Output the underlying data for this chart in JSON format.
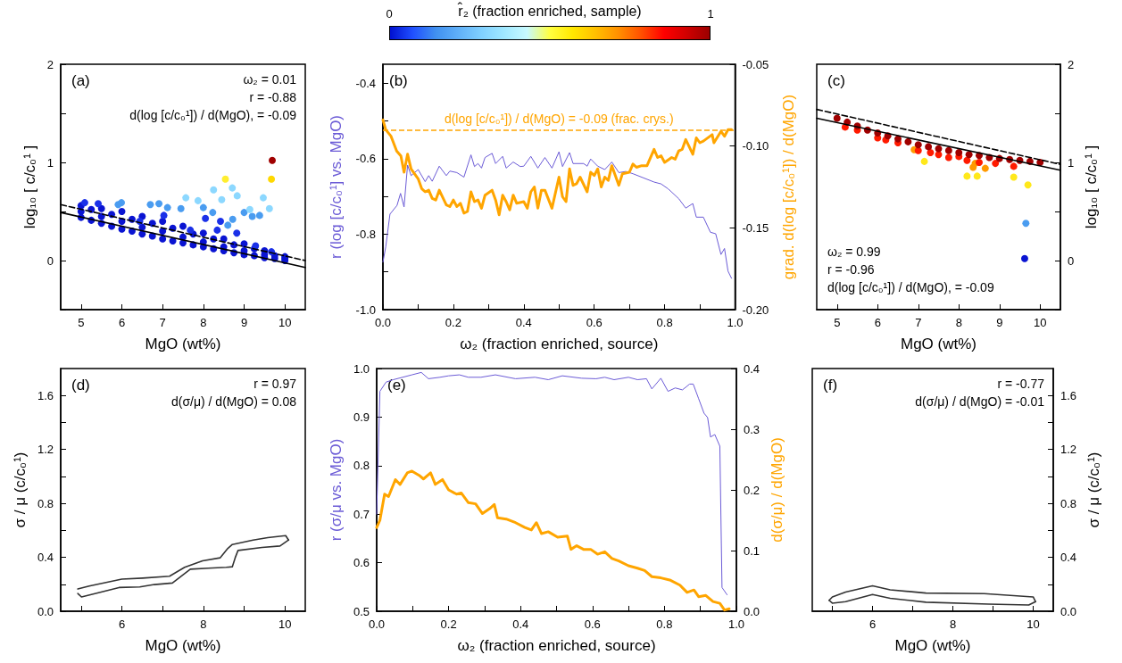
{
  "chart_data": [
    {
      "type": "scatter",
      "clabel": "r̂₂ (fraction enriched, sample)",
      "clim": [
        0,
        1
      ],
      "cticks": [
        0,
        1
      ],
      "marker": "circle",
      "annotations": [
        "(a)",
        "ω₂ = 0.01",
        "r = -0.88",
        "d(log [c/c₀¹]) / d(MgO), = -0.09"
      ],
      "xlabel": "MgO (wt%)",
      "ylabel": "log₁₀ [ c/c₀¹ ]",
      "xlim": [
        4.5,
        10.5
      ],
      "xticks": [
        5,
        6,
        7,
        8,
        9,
        10
      ],
      "ylim": [
        -0.5,
        2
      ],
      "yticks": [
        {
          "value": -0.5,
          "label": null
        },
        0,
        {
          "value": 0.5,
          "label": null
        },
        1,
        {
          "value": 1.5,
          "label": null
        },
        2
      ],
      "series": [
        {
          "x": [
            5,
            5,
            5,
            5.25,
            5.25,
            5.5,
            5.5,
            5.5,
            5.75,
            5.75,
            6,
            6,
            6,
            6.25,
            6.25,
            6.5,
            6.5,
            6.5,
            6.75,
            6.75,
            7,
            7,
            7,
            7.25,
            7.25,
            7.5,
            7.5,
            7.5,
            7.75,
            7.75,
            8,
            8,
            8,
            8.25,
            8.25,
            8.5,
            8.5,
            8.5,
            8.75,
            8.75,
            9,
            9,
            9,
            9.25,
            9.25,
            9.5,
            9.5,
            9.5,
            9.75,
            9.75,
            10,
            10,
            10,
            9.28,
            8.82,
            8.42,
            8.05,
            8.34,
            7.68,
            7.03,
            6.44,
            5.42,
            5.09,
            9.67,
            6.7,
            6.91,
            7.12,
            7.45,
            8.0,
            8.23,
            9.0,
            9.2,
            9.38,
            8.6,
            8.72,
            5.99,
            5.91,
            8.25,
            8.71,
            8.83,
            8.45,
            9.47,
            7.57,
            7.87,
            9.62,
            9.14,
            8.54,
            9.67,
            9.69
          ],
          "values": [
            0.44,
            0.5,
            0.56,
            0.41,
            0.52,
            0.38,
            0.45,
            0.53,
            0.35,
            0.47,
            0.32,
            0.4,
            0.5,
            0.3,
            0.42,
            0.27,
            0.34,
            0.45,
            0.25,
            0.38,
            0.22,
            0.3,
            0.4,
            0.2,
            0.33,
            0.18,
            0.24,
            0.35,
            0.16,
            0.27,
            0.14,
            0.19,
            0.28,
            0.12,
            0.22,
            0.1,
            0.14,
            0.22,
            0.08,
            0.16,
            0.06,
            0.1,
            0.17,
            0.05,
            0.12,
            0.03,
            0.06,
            0.1,
            0.02,
            0.05,
            0,
            0.02,
            0.04,
            0.15,
            0.28,
            0.4,
            0.43,
            0.31,
            0.31,
            0.46,
            0.4,
            0.58,
            0.59,
            0.09,
            0.57,
            0.58,
            0.54,
            0.53,
            0.54,
            0.49,
            0.49,
            0.45,
            0.46,
            0.36,
            0.42,
            0.59,
            0.57,
            0.72,
            0.74,
            0.66,
            0.62,
            0.64,
            0.64,
            0.61,
            0.53,
            0.52,
            0.83,
            0.83,
            1.02
          ],
          "colors": [
            "#0a14d2",
            "#0a14d2",
            "#0a14d2",
            "#0a14d2",
            "#0a14d2",
            "#0a14d2",
            "#0a14d2",
            "#0a14d2",
            "#0a14d2",
            "#0a14d2",
            "#0a14d2",
            "#0a14d2",
            "#0a14d2",
            "#0a14d2",
            "#0a14d2",
            "#0a14d2",
            "#0a14d2",
            "#0a14d2",
            "#0a14d2",
            "#0a14d2",
            "#0a14d2",
            "#0a14d2",
            "#0a14d2",
            "#0a14d2",
            "#0a14d2",
            "#0a14d2",
            "#0a14d2",
            "#0a14d2",
            "#0a14d2",
            "#0a14d2",
            "#0a14d2",
            "#0a14d2",
            "#0a14d2",
            "#0a14d2",
            "#0a14d2",
            "#0a14d2",
            "#0a14d2",
            "#0a14d2",
            "#0a14d2",
            "#0a14d2",
            "#0a14d2",
            "#0a14d2",
            "#0a14d2",
            "#0a14d2",
            "#0a14d2",
            "#0a14d2",
            "#0a14d2",
            "#0a14d2",
            "#0a14d2",
            "#0a14d2",
            "#0a14d2",
            "#0a14d2",
            "#0a14d2",
            "#1a30e8",
            "#1a30e8",
            "#1a30e8",
            "#1a30e8",
            "#1a30e8",
            "#1a30e8",
            "#1a30e8",
            "#1a30e8",
            "#1a30e8",
            "#1a30e8",
            "#1a30e8",
            "#4a9cf0",
            "#4a9cf0",
            "#4a9cf0",
            "#4a9cf0",
            "#4a9cf0",
            "#4a9cf0",
            "#4a9cf0",
            "#4a9cf0",
            "#4a9cf0",
            "#4a9cf0",
            "#4a9cf0",
            "#4a9cf0",
            "#4a9cf0",
            "#8cd8ff",
            "#8cd8ff",
            "#8cd8ff",
            "#8cd8ff",
            "#8cd8ff",
            "#8cd8ff",
            "#8cd8ff",
            "#8cd8ff",
            "#8cd8ff",
            "#ffee30",
            "#ffd800",
            "#a00000"
          ]
        },
        {
          "type": "line",
          "x": [
            4.5,
            10.5
          ],
          "values": [
            0.49,
            -0.07
          ],
          "color": "#000000",
          "line_style": "solid",
          "marker": "none"
        },
        {
          "type": "line",
          "x": [
            4.5,
            10.5
          ],
          "values": [
            0.57,
            0.0
          ],
          "color": "#000000",
          "line_style": "dashed",
          "marker": "none"
        }
      ]
    },
    {
      "type": "line",
      "annotations": [
        "(b)"
      ],
      "xlabel": "ω₂ (fraction enriched, source)",
      "ylabel": "r (log [c/c₀¹] vs. MgO)",
      "y2label": "grad. d(log [c/c₀¹]) / d(MgO)",
      "xlim": [
        0,
        1
      ],
      "xticks": [
        {
          "value": 0,
          "label": "0.0"
        },
        {
          "value": 0.1,
          "label": null
        },
        0.2,
        {
          "value": 0.3,
          "label": null
        },
        0.4,
        {
          "value": 0.5,
          "label": null
        },
        0.6,
        {
          "value": 0.7,
          "label": null
        },
        0.8,
        {
          "value": 0.9,
          "label": null
        },
        {
          "value": 1,
          "label": "1.0"
        }
      ],
      "ylim": [
        -1,
        -0.35
      ],
      "yticks": [
        {
          "value": -1,
          "label": "-1.0"
        },
        {
          "value": -0.9,
          "label": null
        },
        -0.8,
        {
          "value": -0.7,
          "label": null
        },
        -0.6,
        {
          "value": -0.5,
          "label": null
        },
        -0.4
      ],
      "y2lim": [
        -0.2,
        -0.05
      ],
      "y2ticks": [
        {
          "value": -0.2,
          "label": "-0.20"
        },
        -0.15,
        {
          "value": -0.1,
          "label": "-0.10"
        },
        -0.05
      ],
      "ref_lines": [
        {
          "axis": "y2",
          "value": -0.09,
          "label": "d(log [c/c₀¹]) / d(MgO) = -0.09 (frac. crys.)",
          "color": "#ffa500",
          "line_style": "dashed"
        }
      ],
      "series": [
        {
          "color": "#6b5bd6",
          "x": [
            0,
            0.008,
            0.02,
            0.04,
            0.05,
            0.06,
            0.07,
            0.08,
            0.1,
            0.12,
            0.13,
            0.14,
            0.16,
            0.18,
            0.19,
            0.21,
            0.23,
            0.25,
            0.26,
            0.27,
            0.28,
            0.29,
            0.31,
            0.32,
            0.34,
            0.35,
            0.37,
            0.39,
            0.4,
            0.42,
            0.44,
            0.46,
            0.48,
            0.5,
            0.51,
            0.53,
            0.54,
            0.57,
            0.58,
            0.59,
            0.61,
            0.63,
            0.65,
            0.67,
            0.69,
            0.71,
            0.74,
            0.77,
            0.79,
            0.81,
            0.84,
            0.86,
            0.88,
            0.89,
            0.91,
            0.93,
            0.945,
            0.96,
            0.97,
            0.98,
            0.99
          ],
          "values": [
            -0.874,
            -0.834,
            -0.747,
            -0.724,
            -0.692,
            -0.728,
            -0.617,
            -0.645,
            -0.629,
            -0.661,
            -0.645,
            -0.66,
            -0.62,
            -0.645,
            -0.633,
            -0.637,
            -0.649,
            -0.59,
            -0.621,
            -0.613,
            -0.625,
            -0.597,
            -0.586,
            -0.613,
            -0.594,
            -0.625,
            -0.609,
            -0.621,
            -0.62,
            -0.594,
            -0.625,
            -0.597,
            -0.625,
            -0.582,
            -0.621,
            -0.584,
            -0.613,
            -0.613,
            -0.62,
            -0.601,
            -0.62,
            -0.629,
            -0.609,
            -0.637,
            -0.634,
            -0.64,
            -0.651,
            -0.662,
            -0.667,
            -0.68,
            -0.706,
            -0.731,
            -0.719,
            -0.755,
            -0.755,
            -0.795,
            -0.799,
            -0.854,
            -0.838,
            -0.898,
            -0.917
          ]
        },
        {
          "color": "#ffa500",
          "axis": "y2",
          "x": [
            0,
            0.008,
            0.023,
            0.039,
            0.051,
            0.06,
            0.07,
            0.08,
            0.1,
            0.11,
            0.12,
            0.13,
            0.14,
            0.15,
            0.16,
            0.18,
            0.19,
            0.2,
            0.21,
            0.22,
            0.23,
            0.24,
            0.25,
            0.26,
            0.27,
            0.28,
            0.29,
            0.31,
            0.32,
            0.33,
            0.34,
            0.35,
            0.36,
            0.37,
            0.38,
            0.4,
            0.41,
            0.42,
            0.43,
            0.44,
            0.45,
            0.46,
            0.48,
            0.5,
            0.51,
            0.52,
            0.53,
            0.54,
            0.55,
            0.56,
            0.58,
            0.59,
            0.6,
            0.61,
            0.62,
            0.63,
            0.64,
            0.65,
            0.67,
            0.68,
            0.7,
            0.71,
            0.72,
            0.735,
            0.75,
            0.77,
            0.78,
            0.79,
            0.8,
            0.82,
            0.83,
            0.84,
            0.85,
            0.86,
            0.88,
            0.89,
            0.9,
            0.91,
            0.935,
            0.94,
            0.96,
            0.97,
            0.98,
            0.99
          ],
          "values": [
            -0.084,
            -0.09,
            -0.094,
            -0.103,
            -0.106,
            -0.116,
            -0.105,
            -0.114,
            -0.12,
            -0.126,
            -0.128,
            -0.127,
            -0.132,
            -0.133,
            -0.127,
            -0.136,
            -0.137,
            -0.133,
            -0.137,
            -0.135,
            -0.141,
            -0.14,
            -0.128,
            -0.134,
            -0.133,
            -0.138,
            -0.13,
            -0.127,
            -0.133,
            -0.142,
            -0.13,
            -0.134,
            -0.139,
            -0.13,
            -0.135,
            -0.134,
            -0.138,
            -0.128,
            -0.125,
            -0.138,
            -0.127,
            -0.127,
            -0.138,
            -0.119,
            -0.131,
            -0.134,
            -0.114,
            -0.124,
            -0.123,
            -0.119,
            -0.128,
            -0.116,
            -0.118,
            -0.114,
            -0.125,
            -0.119,
            -0.121,
            -0.112,
            -0.124,
            -0.117,
            -0.116,
            -0.111,
            -0.113,
            -0.112,
            -0.112,
            -0.102,
            -0.107,
            -0.106,
            -0.11,
            -0.107,
            -0.108,
            -0.103,
            -0.102,
            -0.096,
            -0.105,
            -0.095,
            -0.098,
            -0.097,
            -0.093,
            -0.098,
            -0.091,
            -0.094,
            -0.09,
            -0.09
          ]
        }
      ]
    },
    {
      "type": "scatter",
      "marker": "circle",
      "annotations": [
        "(c)",
        "ω₂ = 0.99",
        "r = -0.96",
        "d(log [c/c₀¹]) / d(MgO), = -0.09"
      ],
      "xlabel": "MgO (wt%)",
      "y2label": "log₁₀ [ c/c₀¹ ]",
      "xlim": [
        4.5,
        10.5
      ],
      "xticks": [
        5,
        6,
        7,
        8,
        9,
        10
      ],
      "y2lim": [
        -0.5,
        2
      ],
      "y2ticks": [
        {
          "value": -0.5,
          "label": null
        },
        0,
        {
          "value": 0.5,
          "label": null
        },
        1,
        {
          "value": 1.5,
          "label": null
        },
        2
      ],
      "series": [
        {
          "axis": "y2",
          "x": [
            9.62,
            9.65,
            7.15,
            8.2,
            8.45,
            9.35,
            9.7,
            6.9,
            8.35,
            8.4,
            8.65,
            5.2,
            5.5,
            6.0,
            6.2,
            6.5,
            7.0,
            7.3,
            7.5,
            7.75,
            8.0,
            8.2,
            8.5,
            8.9,
            9.35,
            5,
            5.25,
            5.5,
            5.75,
            6,
            6.25,
            6.5,
            6.75,
            7,
            7.25,
            7.5,
            7.75,
            8,
            8.25,
            8.5,
            8.75,
            9,
            9.25,
            9.5,
            9.75,
            10
          ],
          "values": [
            0.02,
            0.38,
            1.01,
            0.86,
            0.86,
            0.85,
            0.77,
            1.13,
            0.95,
            0.99,
            0.94,
            1.36,
            1.33,
            1.25,
            1.23,
            1.2,
            1.12,
            1.1,
            1.08,
            1.05,
            1.06,
            1.02,
            1.0,
            0.99,
            0.96,
            1.45,
            1.41,
            1.37,
            1.33,
            1.3,
            1.27,
            1.24,
            1.21,
            1.18,
            1.16,
            1.14,
            1.12,
            1.1,
            1.08,
            1.07,
            1.05,
            1.04,
            1.03,
            1.02,
            1.01,
            1.0
          ],
          "colors": [
            "#0a14d2",
            "#4a9cf0",
            "#ffe81a",
            "#ffe81a",
            "#ffe81a",
            "#ffe81a",
            "#ffe81a",
            "#ff9a00",
            "#ff9a00",
            "#ff9a00",
            "#ff9a00",
            "#ff1a00",
            "#ff1a00",
            "#ff1a00",
            "#ff1a00",
            "#ff1a00",
            "#ff1a00",
            "#ff1a00",
            "#ff1a00",
            "#ff1a00",
            "#ff1a00",
            "#ff1a00",
            "#ff1a00",
            "#ff1a00",
            "#ff1a00",
            "#a00000",
            "#a00000",
            "#a00000",
            "#a00000",
            "#a00000",
            "#a00000",
            "#a00000",
            "#a00000",
            "#a00000",
            "#a00000",
            "#a00000",
            "#a00000",
            "#a00000",
            "#a00000",
            "#a00000",
            "#a00000",
            "#a00000",
            "#a00000",
            "#a00000",
            "#a00000",
            "#a00000"
          ]
        },
        {
          "type": "line",
          "axis": "y2",
          "x": [
            4.5,
            10.5
          ],
          "values": [
            1.45,
            0.92
          ],
          "color": "#000000",
          "line_style": "solid",
          "marker": "none"
        },
        {
          "type": "line",
          "axis": "y2",
          "x": [
            4.5,
            10.5
          ],
          "values": [
            1.54,
            0.98
          ],
          "color": "#000000",
          "line_style": "dashed",
          "marker": "none"
        }
      ]
    },
    {
      "type": "line",
      "annotations": [
        "(d)",
        "r = 0.97",
        "d(σ/μ) / d(MgO) = 0.08"
      ],
      "xlabel": "MgO (wt%)",
      "ylabel": "σ / μ (c/c₀¹)",
      "xlim": [
        4.5,
        10.5
      ],
      "xticks": [
        {
          "value": 5,
          "label": null
        },
        6,
        {
          "value": 7,
          "label": null
        },
        8,
        {
          "value": 9,
          "label": null
        },
        10
      ],
      "ylim": [
        0,
        1.8
      ],
      "yticks": [
        {
          "value": 0,
          "label": "0.0"
        },
        {
          "value": 0.2,
          "label": null
        },
        0.4,
        {
          "value": 0.6,
          "label": null
        },
        0.8,
        {
          "value": 1,
          "label": null
        },
        1.2,
        {
          "value": 1.4,
          "label": null
        },
        1.6
      ],
      "series": [
        {
          "color": "#333333",
          "x": [
            4.92,
            5.2,
            6.0,
            6.51,
            7.17,
            7.54,
            7.98,
            8.41,
            8.6,
            8.71,
            9.22,
            9.58,
            10.02,
            10.09
          ],
          "values": [
            0.165,
            0.187,
            0.238,
            0.246,
            0.26,
            0.326,
            0.374,
            0.396,
            0.466,
            0.495,
            0.528,
            0.546,
            0.561,
            0.528
          ]
        },
        {
          "color": "#333333",
          "x": [
            4.92,
            5.01,
            5.93,
            6.44,
            6.8,
            7.24,
            7.68,
            8.12,
            8.56,
            8.71,
            8.78,
            8.85,
            9.44,
            9.88,
            10.09
          ],
          "values": [
            0.132,
            0.106,
            0.176,
            0.18,
            0.198,
            0.209,
            0.312,
            0.319,
            0.326,
            0.33,
            0.396,
            0.451,
            0.473,
            0.484,
            0.528
          ]
        }
      ]
    },
    {
      "type": "line",
      "annotations": [
        "(e)"
      ],
      "xlabel": "ω₂ (fraction enriched, source)",
      "ylabel": "r (σ/μ vs. MgO)",
      "y2label": "d(σ/μ) / d(MgO)",
      "xlim": [
        0,
        1
      ],
      "xticks": [
        {
          "value": 0,
          "label": "0.0"
        },
        {
          "value": 0.1,
          "label": null
        },
        0.2,
        {
          "value": 0.3,
          "label": null
        },
        0.4,
        {
          "value": 0.5,
          "label": null
        },
        0.6,
        {
          "value": 0.7,
          "label": null
        },
        0.8,
        {
          "value": 0.9,
          "label": null
        },
        {
          "value": 1,
          "label": "1.0"
        }
      ],
      "ylim": [
        0.5,
        1
      ],
      "yticks": [
        0.5,
        0.6,
        0.7,
        0.8,
        0.9,
        {
          "value": 1,
          "label": "1.0"
        }
      ],
      "y2lim": [
        0,
        0.4
      ],
      "y2ticks": [
        {
          "value": 0,
          "label": "0.0"
        },
        0.1,
        0.2,
        0.3,
        0.4
      ],
      "series": [
        {
          "color": "#6b5bd6",
          "x": [
            0,
            0.009,
            0.026,
            0.046,
            0.072,
            0.098,
            0.124,
            0.144,
            0.176,
            0.2,
            0.23,
            0.255,
            0.29,
            0.33,
            0.386,
            0.44,
            0.477,
            0.516,
            0.57,
            0.61,
            0.634,
            0.66,
            0.7,
            0.725,
            0.75,
            0.765,
            0.79,
            0.81,
            0.83,
            0.85,
            0.87,
            0.88,
            0.895,
            0.91,
            0.92,
            0.928,
            0.94,
            0.954,
            0.96,
            0.974
          ],
          "values": [
            0.7,
            0.953,
            0.972,
            0.977,
            0.982,
            0.987,
            0.992,
            0.979,
            0.982,
            0.985,
            0.987,
            0.982,
            0.982,
            0.987,
            0.979,
            0.982,
            0.977,
            0.985,
            0.98,
            0.979,
            0.982,
            0.977,
            0.982,
            0.977,
            0.979,
            0.958,
            0.98,
            0.953,
            0.96,
            0.956,
            0.968,
            0.968,
            0.938,
            0.908,
            0.899,
            0.859,
            0.864,
            0.84,
            0.549,
            0.534
          ]
        },
        {
          "color": "#ffa500",
          "axis": "y2",
          "x": [
            0,
            0.009,
            0.022,
            0.033,
            0.052,
            0.065,
            0.085,
            0.098,
            0.118,
            0.13,
            0.15,
            0.163,
            0.183,
            0.2,
            0.222,
            0.235,
            0.255,
            0.275,
            0.294,
            0.314,
            0.327,
            0.336,
            0.36,
            0.386,
            0.412,
            0.43,
            0.444,
            0.458,
            0.477,
            0.503,
            0.53,
            0.54,
            0.556,
            0.575,
            0.595,
            0.614,
            0.634,
            0.654,
            0.673,
            0.7,
            0.725,
            0.745,
            0.765,
            0.79,
            0.817,
            0.843,
            0.863,
            0.882,
            0.895,
            0.915,
            0.935,
            0.954,
            0.967,
            0.98
          ],
          "values": [
            0.138,
            0.15,
            0.193,
            0.189,
            0.217,
            0.209,
            0.228,
            0.231,
            0.224,
            0.218,
            0.228,
            0.209,
            0.217,
            0.2,
            0.193,
            0.195,
            0.179,
            0.177,
            0.161,
            0.169,
            0.176,
            0.154,
            0.152,
            0.146,
            0.138,
            0.134,
            0.146,
            0.128,
            0.131,
            0.122,
            0.124,
            0.102,
            0.108,
            0.102,
            0.102,
            0.094,
            0.098,
            0.087,
            0.083,
            0.075,
            0.071,
            0.067,
            0.057,
            0.055,
            0.051,
            0.043,
            0.031,
            0.035,
            0.024,
            0.026,
            0.016,
            0.013,
            0.002,
            0.004
          ]
        }
      ]
    },
    {
      "type": "line",
      "annotations": [
        "(f)",
        "r = -0.77",
        "d(σ/μ) / d(MgO) = -0.01"
      ],
      "xlabel": "MgO (wt%)",
      "y2label": "σ / μ (c/c₀¹)",
      "xlim": [
        4.5,
        10.5
      ],
      "xticks": [
        {
          "value": 5,
          "label": null
        },
        6,
        {
          "value": 7,
          "label": null
        },
        8,
        {
          "value": 9,
          "label": null
        },
        10
      ],
      "y2lim": [
        0,
        1.8
      ],
      "y2ticks": [
        {
          "value": 0,
          "label": "0.0"
        },
        {
          "value": 0.2,
          "label": null
        },
        0.4,
        {
          "value": 0.6,
          "label": null
        },
        0.8,
        {
          "value": 1,
          "label": null
        },
        1.2,
        {
          "value": 1.4,
          "label": null
        },
        1.6
      ],
      "series": [
        {
          "color": "#333333",
          "axis": "y2",
          "x": [
            4.92,
            5,
            5.33,
            6.0,
            6.44,
            7.33,
            8.78,
            10,
            10.06
          ],
          "values": [
            0.081,
            0.106,
            0.142,
            0.188,
            0.159,
            0.135,
            0.131,
            0.106,
            0.071
          ]
        },
        {
          "color": "#333333",
          "axis": "y2",
          "x": [
            4.92,
            5.0,
            5.33,
            6.0,
            6.44,
            7.33,
            8.89,
            9.89,
            10.06
          ],
          "values": [
            0.081,
            0.06,
            0.071,
            0.124,
            0.096,
            0.067,
            0.053,
            0.046,
            0.071
          ]
        }
      ]
    }
  ]
}
